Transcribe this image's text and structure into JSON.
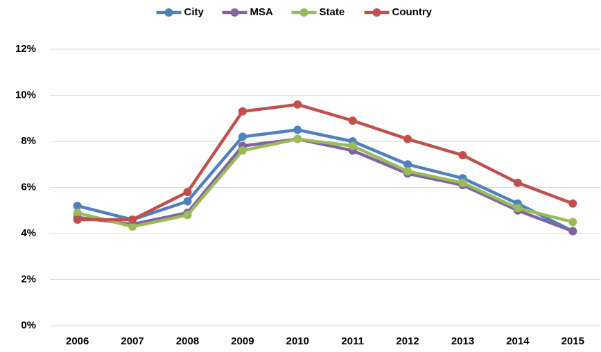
{
  "chart_data": {
    "type": "line",
    "categories": [
      "2006",
      "2007",
      "2008",
      "2009",
      "2010",
      "2011",
      "2012",
      "2013",
      "2014",
      "2015"
    ],
    "series": [
      {
        "name": "City",
        "color": "#4f81bd",
        "values": [
          5.2,
          4.6,
          5.4,
          8.2,
          8.5,
          8.0,
          7.0,
          6.4,
          5.3,
          4.1
        ]
      },
      {
        "name": "MSA",
        "color": "#8064a2",
        "values": [
          4.7,
          4.4,
          4.9,
          7.8,
          8.1,
          7.6,
          6.6,
          6.1,
          5.0,
          4.1
        ]
      },
      {
        "name": "State",
        "color": "#9bbb59",
        "values": [
          4.9,
          4.3,
          4.8,
          7.6,
          8.1,
          7.8,
          6.7,
          6.2,
          5.1,
          4.5
        ]
      },
      {
        "name": "Country",
        "color": "#c0504d",
        "values": [
          4.6,
          4.6,
          5.8,
          9.3,
          9.6,
          8.9,
          8.1,
          7.4,
          6.2,
          5.3
        ]
      }
    ],
    "ylim": [
      0,
      12
    ],
    "yticks": [
      {
        "value": 0,
        "label": "0%"
      },
      {
        "value": 2,
        "label": "2%"
      },
      {
        "value": 4,
        "label": "4%"
      },
      {
        "value": 6,
        "label": "6%"
      },
      {
        "value": 8,
        "label": "8%"
      },
      {
        "value": 10,
        "label": "10%"
      },
      {
        "value": 12,
        "label": "12%"
      }
    ],
    "grid": true,
    "legend": "top"
  }
}
